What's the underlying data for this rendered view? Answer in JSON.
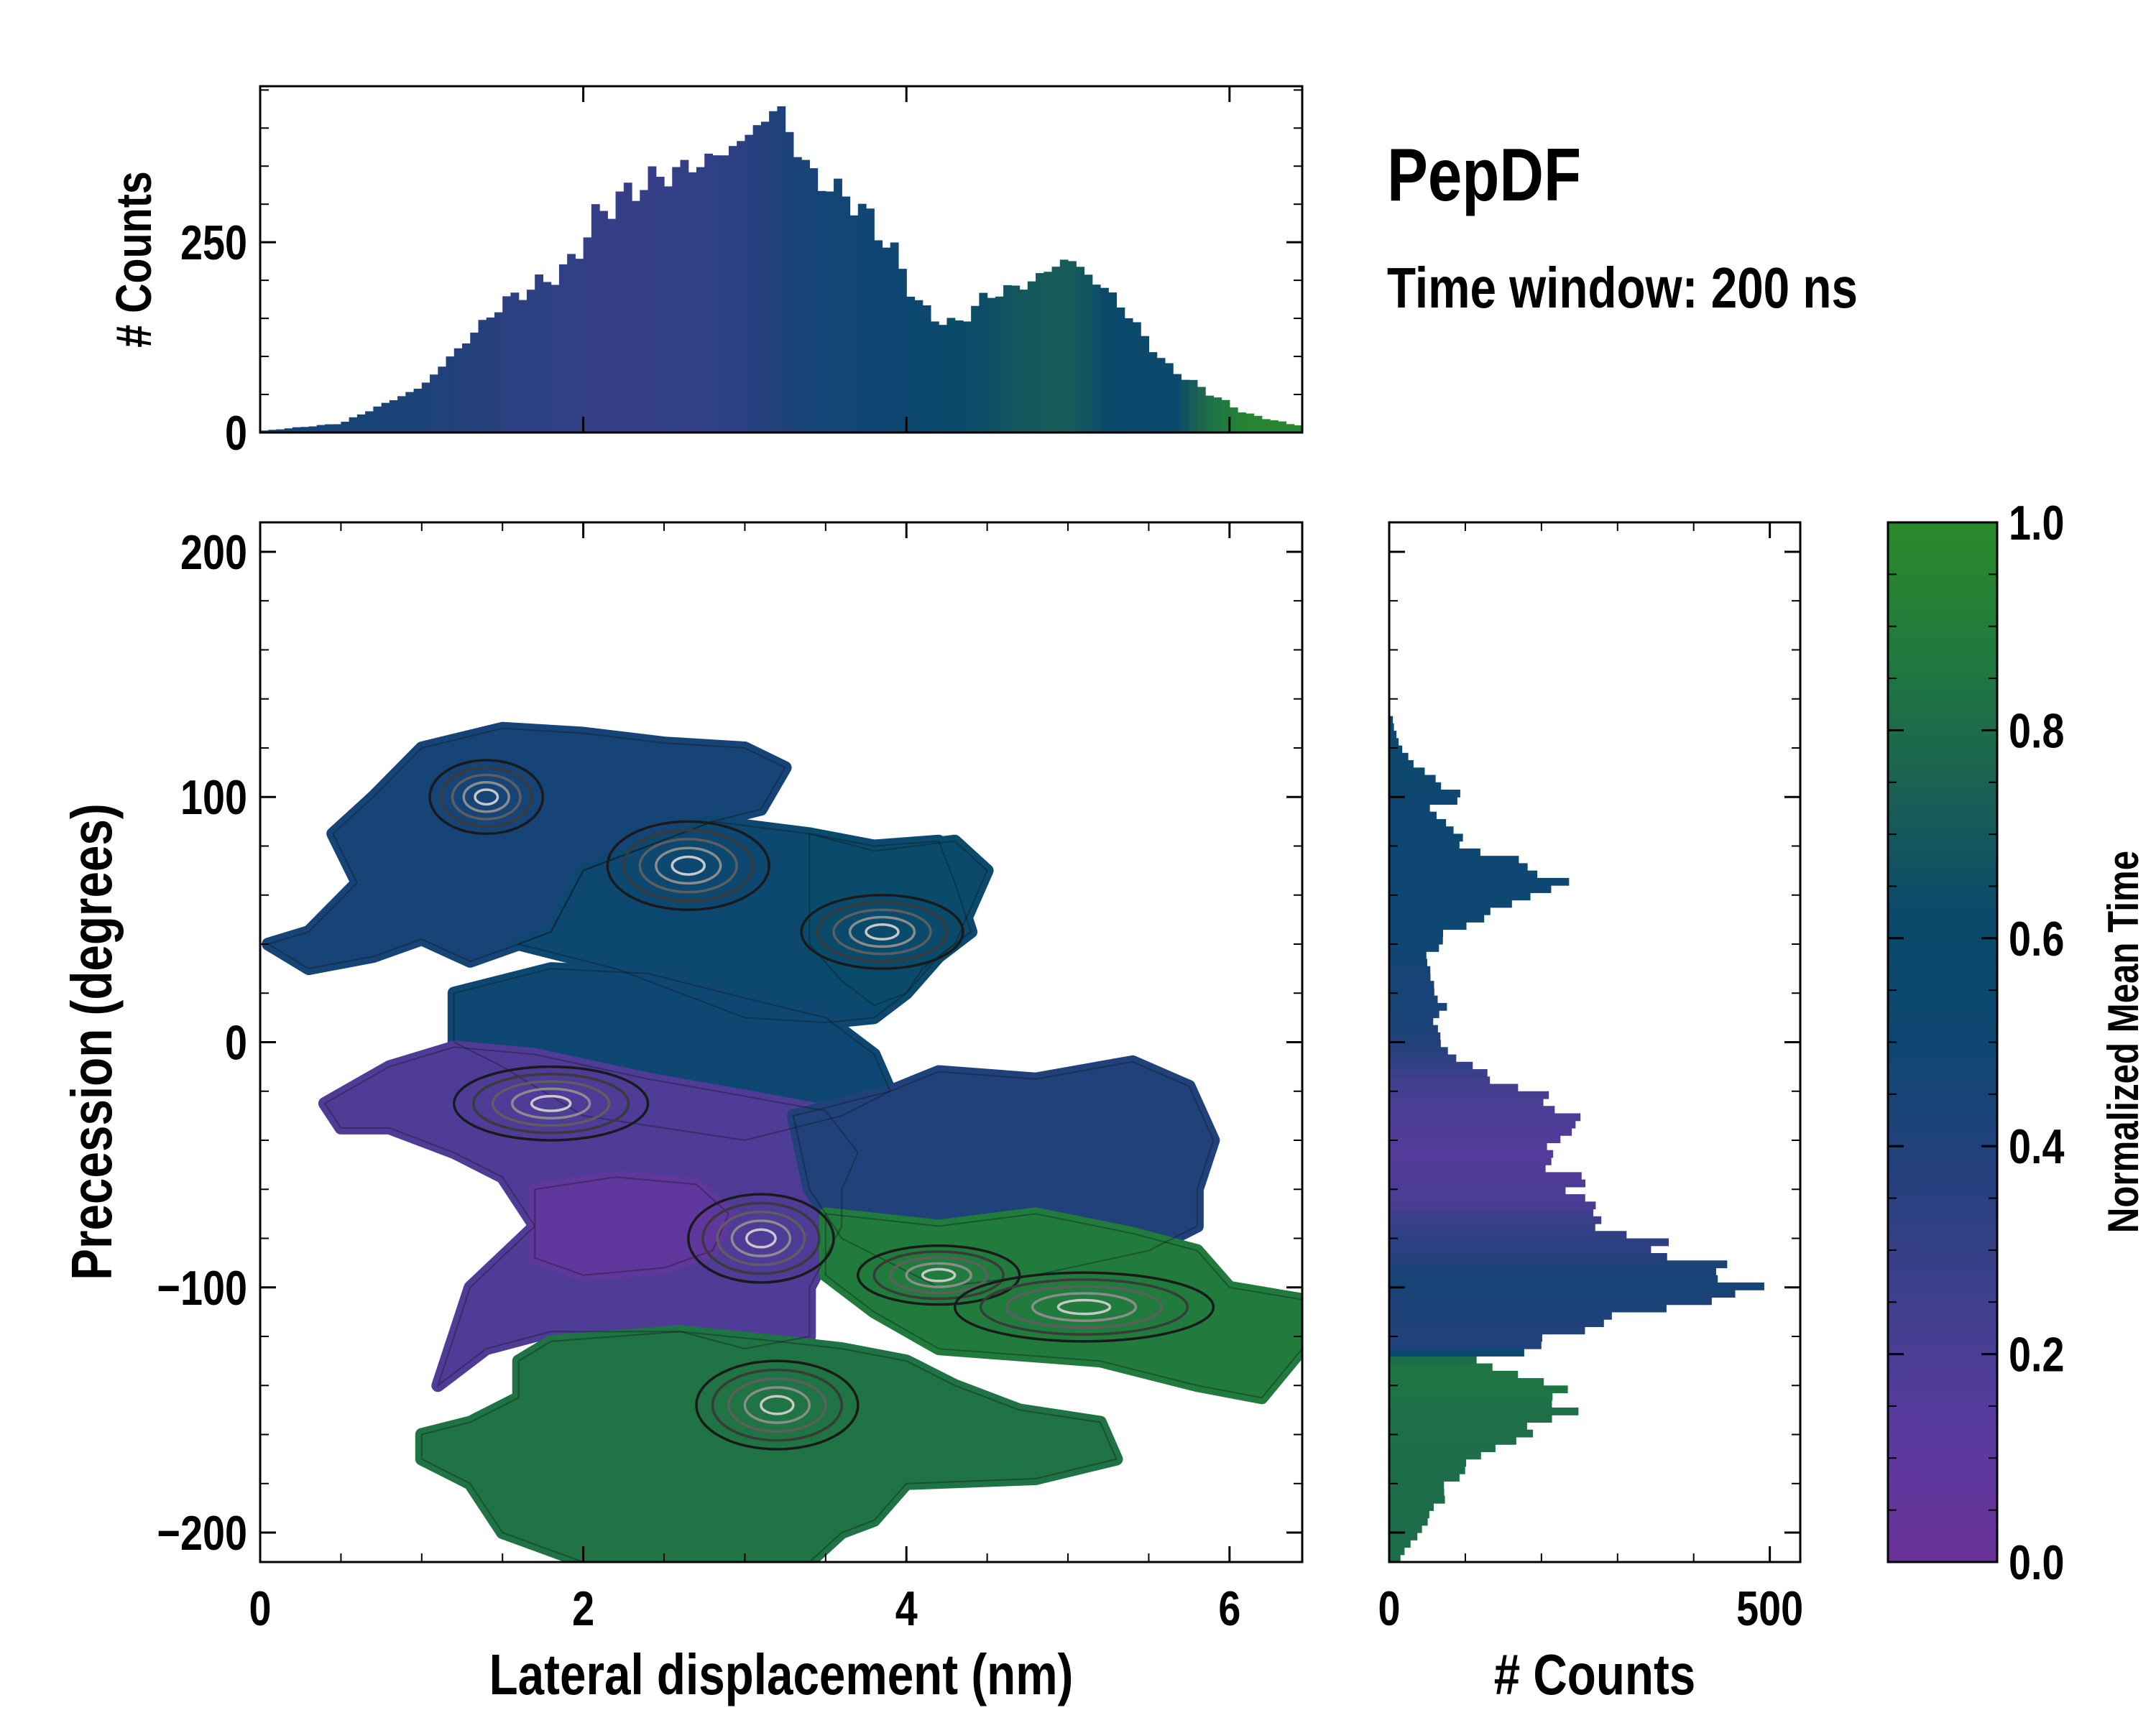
{
  "figure": {
    "title": "PepDF",
    "subtitle": "Time window: 200 ns"
  },
  "chart_data": [
    {
      "id": "joint",
      "type": "heatmap",
      "xlabel": "Lateral displacement (nm)",
      "ylabel": "Precession (degrees)",
      "xlim": [
        0,
        6.45
      ],
      "ylim": [
        -212,
        212
      ],
      "xticks": [
        0,
        2,
        4,
        6
      ],
      "xtick_labels": [
        "0",
        "2",
        "4",
        "6"
      ],
      "yticks": [
        -200,
        -100,
        0,
        100,
        200
      ],
      "ytick_labels": [
        "−200",
        "−100",
        "0",
        "100",
        "200"
      ],
      "color_stops": [
        "#6a3298",
        "#5a3a9e",
        "#3f3f8e",
        "#24407c",
        "#0e4772",
        "#0a4a6a",
        "#1b6252",
        "#207a3e",
        "#2a8a2a"
      ],
      "regions": [
        {
          "name": "upper-left lobe",
          "color": 0.45,
          "outline": [
            [
              0.05,
              40
            ],
            [
              0.3,
              45
            ],
            [
              0.6,
              65
            ],
            [
              0.45,
              85
            ],
            [
              0.7,
              100
            ],
            [
              1.0,
              120
            ],
            [
              1.5,
              128
            ],
            [
              2.0,
              126
            ],
            [
              2.5,
              122
            ],
            [
              3.0,
              120
            ],
            [
              3.25,
              112
            ],
            [
              3.1,
              95
            ],
            [
              2.8,
              90
            ],
            [
              2.0,
              70
            ],
            [
              1.8,
              45
            ],
            [
              1.6,
              40
            ],
            [
              1.3,
              33
            ],
            [
              1.0,
              42
            ],
            [
              0.7,
              35
            ],
            [
              0.3,
              30
            ]
          ]
        },
        {
          "name": "upper-middle plateau",
          "color": 0.55,
          "outline": [
            [
              2.0,
              70
            ],
            [
              2.8,
              90
            ],
            [
              3.4,
              85
            ],
            [
              3.8,
              80
            ],
            [
              4.2,
              82
            ],
            [
              4.3,
              65
            ],
            [
              4.4,
              45
            ],
            [
              4.2,
              35
            ],
            [
              4.0,
              20
            ],
            [
              3.8,
              10
            ],
            [
              3.5,
              8
            ],
            [
              3.0,
              10
            ],
            [
              2.6,
              20
            ],
            [
              2.4,
              25
            ],
            [
              2.2,
              30
            ],
            [
              1.6,
              40
            ],
            [
              1.8,
              45
            ]
          ]
        },
        {
          "name": "upper-right strip",
          "color": 0.62,
          "outline": [
            [
              3.4,
              85
            ],
            [
              3.8,
              78
            ],
            [
              4.3,
              82
            ],
            [
              4.5,
              70
            ],
            [
              4.4,
              55
            ],
            [
              4.3,
              40
            ],
            [
              4.1,
              30
            ],
            [
              4.0,
              20
            ],
            [
              3.8,
              15
            ],
            [
              3.6,
              25
            ],
            [
              3.4,
              40
            ]
          ]
        },
        {
          "name": "centre band",
          "color": 0.5,
          "outline": [
            [
              1.2,
              20
            ],
            [
              1.8,
              30
            ],
            [
              2.4,
              28
            ],
            [
              3.0,
              18
            ],
            [
              3.5,
              10
            ],
            [
              3.8,
              -5
            ],
            [
              3.9,
              -20
            ],
            [
              3.6,
              -30
            ],
            [
              3.0,
              -40
            ],
            [
              2.5,
              -35
            ],
            [
              2.0,
              -30
            ],
            [
              1.5,
              -10
            ],
            [
              1.2,
              0
            ]
          ]
        },
        {
          "name": "purple basin",
          "color": 0.18,
          "outline": [
            [
              0.4,
              -25
            ],
            [
              0.8,
              -10
            ],
            [
              1.2,
              -2
            ],
            [
              1.7,
              -5
            ],
            [
              2.4,
              -15
            ],
            [
              3.0,
              -22
            ],
            [
              3.5,
              -28
            ],
            [
              3.7,
              -45
            ],
            [
              3.6,
              -60
            ],
            [
              3.6,
              -75
            ],
            [
              3.4,
              -100
            ],
            [
              3.4,
              -120
            ],
            [
              3.0,
              -125
            ],
            [
              2.6,
              -118
            ],
            [
              1.8,
              -118
            ],
            [
              1.4,
              -125
            ],
            [
              1.1,
              -140
            ],
            [
              1.3,
              -100
            ],
            [
              1.7,
              -75
            ],
            [
              1.5,
              -55
            ],
            [
              1.2,
              -45
            ],
            [
              0.8,
              -35
            ],
            [
              0.5,
              -35
            ]
          ]
        },
        {
          "name": "purple core",
          "color": 0.08,
          "outline": [
            [
              1.7,
              -60
            ],
            [
              2.2,
              -55
            ],
            [
              2.7,
              -58
            ],
            [
              2.9,
              -70
            ],
            [
              2.8,
              -85
            ],
            [
              2.5,
              -92
            ],
            [
              2.0,
              -95
            ],
            [
              1.7,
              -88
            ]
          ]
        },
        {
          "name": "right band",
          "color": 0.4,
          "outline": [
            [
              3.3,
              -30
            ],
            [
              3.9,
              -20
            ],
            [
              4.2,
              -12
            ],
            [
              4.8,
              -15
            ],
            [
              5.4,
              -8
            ],
            [
              5.75,
              -18
            ],
            [
              5.9,
              -40
            ],
            [
              5.8,
              -60
            ],
            [
              5.8,
              -75
            ],
            [
              5.5,
              -85
            ],
            [
              4.8,
              -95
            ],
            [
              4.2,
              -100
            ],
            [
              3.6,
              -80
            ],
            [
              3.4,
              -60
            ]
          ]
        },
        {
          "name": "green shelf",
          "color": 0.88,
          "outline": [
            [
              3.5,
              -70
            ],
            [
              4.2,
              -75
            ],
            [
              4.8,
              -70
            ],
            [
              5.4,
              -78
            ],
            [
              5.8,
              -85
            ],
            [
              6.0,
              -100
            ],
            [
              6.45,
              -105
            ],
            [
              6.45,
              -125
            ],
            [
              6.2,
              -145
            ],
            [
              5.8,
              -140
            ],
            [
              5.2,
              -130
            ],
            [
              4.8,
              -128
            ],
            [
              4.2,
              -125
            ],
            [
              3.8,
              -110
            ],
            [
              3.5,
              -95
            ]
          ]
        },
        {
          "name": "lower green",
          "color": 0.84,
          "outline": [
            [
              1.8,
              -122
            ],
            [
              2.6,
              -118
            ],
            [
              3.2,
              -122
            ],
            [
              3.6,
              -125
            ],
            [
              4.0,
              -130
            ],
            [
              4.3,
              -140
            ],
            [
              4.7,
              -150
            ],
            [
              5.2,
              -155
            ],
            [
              5.3,
              -170
            ],
            [
              4.8,
              -178
            ],
            [
              4.0,
              -180
            ],
            [
              3.8,
              -195
            ],
            [
              3.6,
              -200
            ],
            [
              3.4,
              -212
            ],
            [
              2.0,
              -212
            ],
            [
              1.5,
              -200
            ],
            [
              1.3,
              -180
            ],
            [
              1.0,
              -170
            ],
            [
              1.0,
              -160
            ],
            [
              1.3,
              -155
            ],
            [
              1.6,
              -145
            ],
            [
              1.6,
              -130
            ]
          ]
        }
      ],
      "contour_centres": [
        {
          "x": 1.4,
          "y": 100,
          "rx": 0.35,
          "ry": 15
        },
        {
          "x": 2.65,
          "y": 72,
          "rx": 0.5,
          "ry": 18
        },
        {
          "x": 3.85,
          "y": 45,
          "rx": 0.5,
          "ry": 15
        },
        {
          "x": 1.8,
          "y": -25,
          "rx": 0.6,
          "ry": 15
        },
        {
          "x": 3.1,
          "y": -80,
          "rx": 0.45,
          "ry": 18
        },
        {
          "x": 4.2,
          "y": -95,
          "rx": 0.5,
          "ry": 12
        },
        {
          "x": 5.1,
          "y": -108,
          "rx": 0.8,
          "ry": 14
        },
        {
          "x": 3.2,
          "y": -148,
          "rx": 0.5,
          "ry": 18
        }
      ]
    },
    {
      "id": "top-hist",
      "type": "bar",
      "ylabel": "# Counts",
      "xlim": [
        0,
        6.45
      ],
      "ylim": [
        0,
        455
      ],
      "yticks": [
        0,
        250
      ],
      "ytick_labels": [
        "0",
        "250"
      ],
      "bin_width": 0.05,
      "x": [
        0.0,
        0.5,
        1.0,
        1.5,
        1.9,
        2.1,
        2.4,
        2.8,
        3.0,
        3.2,
        3.4,
        3.7,
        3.9,
        4.1,
        4.3,
        4.5,
        4.75,
        5.0,
        5.3,
        5.6,
        5.85,
        6.1,
        6.4
      ],
      "values": [
        2,
        12,
        60,
        170,
        215,
        290,
        330,
        360,
        385,
        430,
        340,
        300,
        245,
        160,
        140,
        180,
        195,
        230,
        175,
        90,
        55,
        25,
        10
      ],
      "color_values": [
        0.45,
        0.45,
        0.42,
        0.35,
        0.32,
        0.3,
        0.3,
        0.32,
        0.35,
        0.4,
        0.45,
        0.48,
        0.5,
        0.55,
        0.62,
        0.65,
        0.7,
        0.72,
        0.6,
        0.55,
        0.8,
        0.95,
        0.95
      ]
    },
    {
      "id": "right-hist",
      "type": "bar",
      "xlabel": "# Counts",
      "xlim": [
        0,
        540
      ],
      "ylim": [
        -212,
        212
      ],
      "xticks": [
        0,
        500
      ],
      "xtick_labels": [
        "0",
        "500"
      ],
      "bin_width": 3,
      "y": [
        130,
        120,
        110,
        100,
        95,
        90,
        80,
        70,
        65,
        55,
        45,
        35,
        25,
        15,
        5,
        -5,
        -15,
        -25,
        -35,
        -45,
        -55,
        -65,
        -75,
        -85,
        -95,
        -100,
        -105,
        -115,
        -125,
        -130,
        -140,
        -150,
        -160,
        -170,
        -180,
        -190,
        -200,
        -212
      ],
      "values": [
        5,
        15,
        45,
        100,
        50,
        75,
        100,
        200,
        230,
        150,
        80,
        50,
        55,
        70,
        60,
        80,
        140,
        220,
        250,
        200,
        240,
        260,
        280,
        370,
        440,
        490,
        420,
        260,
        190,
        110,
        220,
        230,
        180,
        110,
        80,
        60,
        40,
        10
      ],
      "color_values": [
        0.55,
        0.55,
        0.55,
        0.5,
        0.5,
        0.5,
        0.5,
        0.5,
        0.5,
        0.5,
        0.5,
        0.48,
        0.45,
        0.45,
        0.42,
        0.35,
        0.25,
        0.2,
        0.18,
        0.15,
        0.18,
        0.2,
        0.3,
        0.35,
        0.45,
        0.45,
        0.42,
        0.4,
        0.4,
        0.85,
        0.85,
        0.82,
        0.82,
        0.8,
        0.8,
        0.8,
        0.8,
        0.8
      ]
    },
    {
      "id": "colorbar",
      "type": "colorbar",
      "label": "Normalized Mean Time",
      "range": [
        0,
        1
      ],
      "ticks": [
        0.0,
        0.2,
        0.4,
        0.6,
        0.8,
        1.0
      ],
      "tick_labels": [
        "0.0",
        "0.2",
        "0.4",
        "0.6",
        "0.8",
        "1.0"
      ]
    }
  ]
}
